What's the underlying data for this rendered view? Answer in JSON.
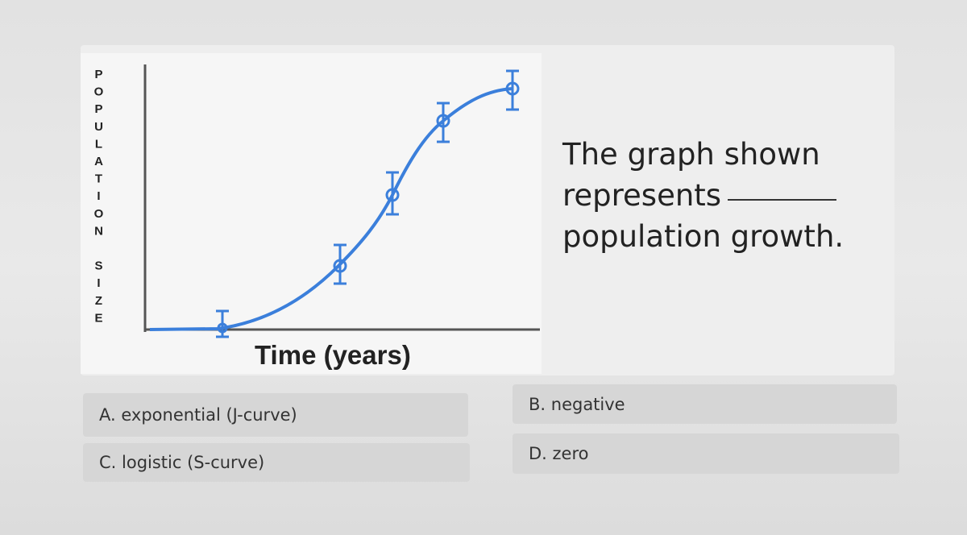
{
  "graph": {
    "y_axis_label": "POPULATION SIZE",
    "x_axis_label": "Time (years)"
  },
  "question": {
    "lines": [
      "The graph shown",
      "represents",
      "population growth."
    ]
  },
  "options": [
    "A. exponential (J-curve)",
    "B. negative",
    "C. logistic (S-curve)",
    "D. zero"
  ]
}
